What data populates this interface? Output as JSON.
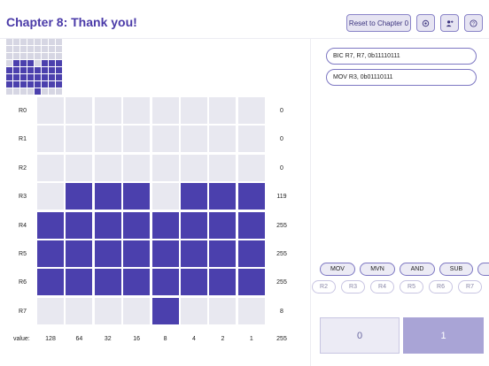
{
  "header": {
    "title": "Chapter 8: Thank you!",
    "reset_label": "Reset to Chapter 0",
    "icons": [
      "settings-icon",
      "add-user-icon",
      "help-icon"
    ]
  },
  "preview": {
    "rows": [
      [
        0,
        0,
        0,
        0,
        0,
        0,
        0,
        0
      ],
      [
        0,
        0,
        0,
        0,
        0,
        0,
        0,
        0
      ],
      [
        0,
        0,
        0,
        0,
        0,
        0,
        0,
        0
      ],
      [
        0,
        1,
        1,
        1,
        0,
        1,
        1,
        1
      ],
      [
        1,
        1,
        1,
        1,
        1,
        1,
        1,
        1
      ],
      [
        1,
        1,
        1,
        1,
        1,
        1,
        1,
        1
      ],
      [
        1,
        1,
        1,
        1,
        1,
        1,
        1,
        1
      ],
      [
        0,
        0,
        0,
        0,
        1,
        0,
        0,
        0
      ]
    ]
  },
  "grid": {
    "rows": [
      {
        "label": "R0",
        "value": "0",
        "bits": [
          0,
          0,
          0,
          0,
          0,
          0,
          0,
          0
        ]
      },
      {
        "label": "R1",
        "value": "0",
        "bits": [
          0,
          0,
          0,
          0,
          0,
          0,
          0,
          0
        ]
      },
      {
        "label": "R2",
        "value": "0",
        "bits": [
          0,
          0,
          0,
          0,
          0,
          0,
          0,
          0
        ]
      },
      {
        "label": "R3",
        "value": "119",
        "bits": [
          0,
          1,
          1,
          1,
          0,
          1,
          1,
          1
        ]
      },
      {
        "label": "R4",
        "value": "255",
        "bits": [
          1,
          1,
          1,
          1,
          1,
          1,
          1,
          1
        ]
      },
      {
        "label": "R5",
        "value": "255",
        "bits": [
          1,
          1,
          1,
          1,
          1,
          1,
          1,
          1
        ]
      },
      {
        "label": "R6",
        "value": "255",
        "bits": [
          1,
          1,
          1,
          1,
          1,
          1,
          1,
          1
        ]
      },
      {
        "label": "R7",
        "value": "8",
        "bits": [
          0,
          0,
          0,
          0,
          1,
          0,
          0,
          0
        ]
      }
    ],
    "value_label": "value:",
    "col_values": [
      "128",
      "64",
      "32",
      "16",
      "8",
      "4",
      "2",
      "1"
    ],
    "total": "255"
  },
  "program": {
    "instructions": [
      "BIC R7, R7, 0b11110111",
      "MOV R3, 0b01110111"
    ]
  },
  "opcodes": [
    "MOV",
    "MVN",
    "AND",
    "SUB"
  ],
  "registers": [
    "R2",
    "R3",
    "R4",
    "R5",
    "R6",
    "R7"
  ],
  "bits": {
    "zero": "0",
    "one": "1"
  },
  "colors": {
    "accent": "#4b40ad",
    "cell_off": "#e8e8f0",
    "title": "#4a3aa8"
  }
}
